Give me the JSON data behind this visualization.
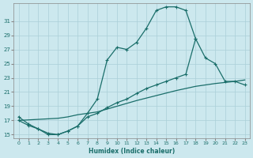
{
  "xlabel": "Humidex (Indice chaleur)",
  "background_color": "#cce8ee",
  "grid_color": "#aacfd8",
  "line_color": "#1a6e6a",
  "ylim": [
    14.5,
    33.5
  ],
  "xlim": [
    -0.5,
    23.5
  ],
  "yticks": [
    15,
    17,
    19,
    21,
    23,
    25,
    27,
    29,
    31
  ],
  "xticks": [
    0,
    1,
    2,
    3,
    4,
    5,
    6,
    7,
    8,
    9,
    10,
    11,
    12,
    13,
    14,
    15,
    16,
    17,
    18,
    19,
    20,
    21,
    22,
    23
  ],
  "line1": [
    [
      0,
      17.5
    ],
    [
      1,
      16.5
    ],
    [
      2,
      15.8
    ],
    [
      3,
      15.2
    ],
    [
      4,
      15.0
    ],
    [
      5,
      15.5
    ],
    [
      6,
      16.2
    ],
    [
      7,
      18.0
    ],
    [
      8,
      20.0
    ],
    [
      9,
      25.5
    ],
    [
      10,
      27.3
    ],
    [
      11,
      27.0
    ],
    [
      12,
      28.0
    ],
    [
      13,
      30.0
    ],
    [
      14,
      32.5
    ],
    [
      15,
      33.0
    ],
    [
      16,
      33.0
    ],
    [
      17,
      32.5
    ],
    [
      18,
      28.5
    ]
  ],
  "line2": [
    [
      0,
      17.0
    ],
    [
      4,
      17.3
    ],
    [
      5,
      17.5
    ],
    [
      6,
      17.8
    ],
    [
      8,
      18.2
    ],
    [
      10,
      19.0
    ],
    [
      12,
      19.8
    ],
    [
      14,
      20.5
    ],
    [
      16,
      21.2
    ],
    [
      18,
      21.8
    ],
    [
      20,
      22.2
    ],
    [
      22,
      22.5
    ],
    [
      23,
      22.7
    ]
  ],
  "line3": [
    [
      0,
      17.0
    ],
    [
      1,
      16.3
    ],
    [
      2,
      15.8
    ],
    [
      3,
      15.0
    ],
    [
      4,
      15.0
    ],
    [
      5,
      15.5
    ],
    [
      6,
      16.2
    ],
    [
      7,
      17.5
    ],
    [
      8,
      18.0
    ],
    [
      9,
      18.8
    ],
    [
      10,
      19.5
    ],
    [
      11,
      20.0
    ],
    [
      12,
      20.8
    ],
    [
      13,
      21.5
    ],
    [
      14,
      22.0
    ],
    [
      15,
      22.5
    ],
    [
      16,
      23.0
    ],
    [
      17,
      23.5
    ],
    [
      18,
      28.5
    ],
    [
      19,
      25.8
    ],
    [
      20,
      25.0
    ],
    [
      21,
      22.5
    ],
    [
      22,
      22.5
    ],
    [
      23,
      22.0
    ]
  ]
}
